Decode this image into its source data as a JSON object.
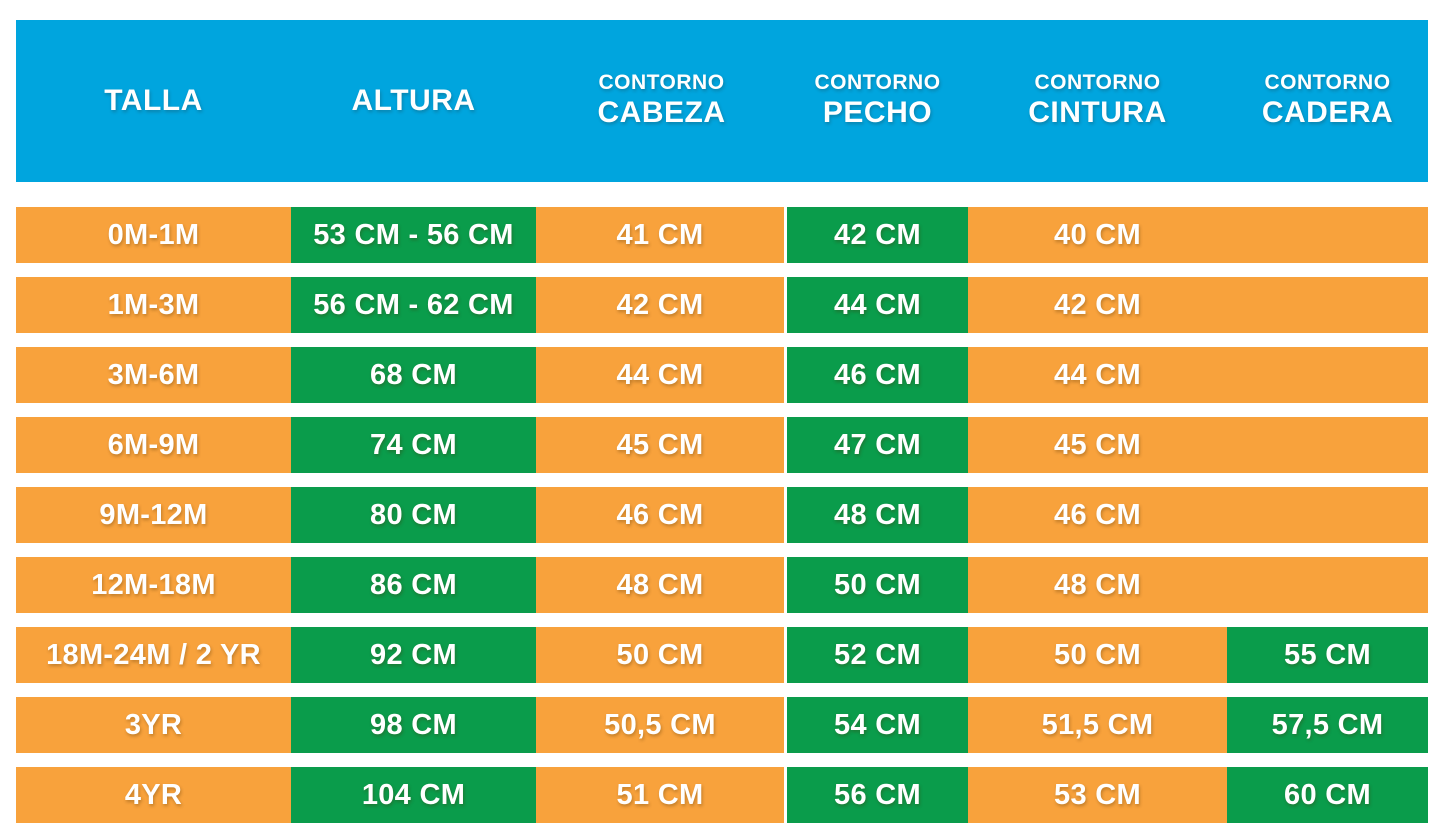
{
  "colors": {
    "header_bg": "#00A5DE",
    "orange_cell": "#F8A23C",
    "green_cell": "#0A9C4B",
    "text": "#FFFFFF",
    "page_bg": "#FFFFFF"
  },
  "header": {
    "columns": [
      {
        "line1": "",
        "line2": "TALLA"
      },
      {
        "line1": "",
        "line2": "ALTURA"
      },
      {
        "line1": "CONTORNO",
        "line2": "CABEZA"
      },
      {
        "line1": "CONTORNO",
        "line2": "PECHO"
      },
      {
        "line1": "CONTORNO",
        "line2": "CINTURA"
      },
      {
        "line1": "CONTORNO",
        "line2": "CADERA"
      }
    ]
  },
  "rows": [
    {
      "talla": "0M-1M",
      "altura": "53 CM - 56 CM",
      "cabeza": "41 CM",
      "pecho": "42 CM",
      "cintura": "40 CM",
      "cadera": ""
    },
    {
      "talla": "1M-3M",
      "altura": "56 CM - 62 CM",
      "cabeza": "42 CM",
      "pecho": "44 CM",
      "cintura": "42 CM",
      "cadera": ""
    },
    {
      "talla": "3M-6M",
      "altura": "68 CM",
      "cabeza": "44 CM",
      "pecho": "46 CM",
      "cintura": "44 CM",
      "cadera": ""
    },
    {
      "talla": "6M-9M",
      "altura": "74 CM",
      "cabeza": "45 CM",
      "pecho": "47 CM",
      "cintura": "45 CM",
      "cadera": ""
    },
    {
      "talla": "9M-12M",
      "altura": "80 CM",
      "cabeza": "46 CM",
      "pecho": "48 CM",
      "cintura": "46 CM",
      "cadera": ""
    },
    {
      "talla": "12M-18M",
      "altura": "86 CM",
      "cabeza": "48 CM",
      "pecho": "50 CM",
      "cintura": "48 CM",
      "cadera": ""
    },
    {
      "talla": "18M-24M / 2 YR",
      "altura": "92 CM",
      "cabeza": "50 CM",
      "pecho": "52 CM",
      "cintura": "50 CM",
      "cadera": "55 CM"
    },
    {
      "talla": "3YR",
      "altura": "98 CM",
      "cabeza": "50,5 CM",
      "pecho": "54 CM",
      "cintura": "51,5 CM",
      "cadera": "57,5 CM"
    },
    {
      "talla": "4YR",
      "altura": "104 CM",
      "cabeza": "51 CM",
      "pecho": "56 CM",
      "cintura": "53 CM",
      "cadera": "60 CM"
    }
  ],
  "chart_data": {
    "type": "table",
    "title": "Tabla de tallas infantil (cm)",
    "columns": [
      "TALLA",
      "ALTURA",
      "CONTORNO CABEZA",
      "CONTORNO PECHO",
      "CONTORNO CINTURA",
      "CONTORNO CADERA"
    ],
    "rows": [
      [
        "0M-1M",
        "53 CM - 56 CM",
        "41 CM",
        "42 CM",
        "40 CM",
        ""
      ],
      [
        "1M-3M",
        "56 CM - 62 CM",
        "42 CM",
        "44 CM",
        "42 CM",
        ""
      ],
      [
        "3M-6M",
        "68 CM",
        "44 CM",
        "46 CM",
        "44 CM",
        ""
      ],
      [
        "6M-9M",
        "74 CM",
        "45 CM",
        "47 CM",
        "45 CM",
        ""
      ],
      [
        "9M-12M",
        "80 CM",
        "46 CM",
        "48 CM",
        "46 CM",
        ""
      ],
      [
        "12M-18M",
        "86 CM",
        "48 CM",
        "50 CM",
        "48 CM",
        ""
      ],
      [
        "18M-24M / 2 YR",
        "92 CM",
        "50 CM",
        "52 CM",
        "50 CM",
        "55 CM"
      ],
      [
        "3YR",
        "98 CM",
        "50,5 CM",
        "54 CM",
        "51,5 CM",
        "57,5 CM"
      ],
      [
        "4YR",
        "104 CM",
        "51 CM",
        "56 CM",
        "53 CM",
        "60 CM"
      ]
    ],
    "legend_position": "none",
    "grid": false,
    "cell_highlight": "ALTURA and CONTORNO PECHO columns green in all rows; CONTORNO CADERA green only for 18M-24M / 2 YR, 3YR, 4YR; all other cells orange"
  }
}
